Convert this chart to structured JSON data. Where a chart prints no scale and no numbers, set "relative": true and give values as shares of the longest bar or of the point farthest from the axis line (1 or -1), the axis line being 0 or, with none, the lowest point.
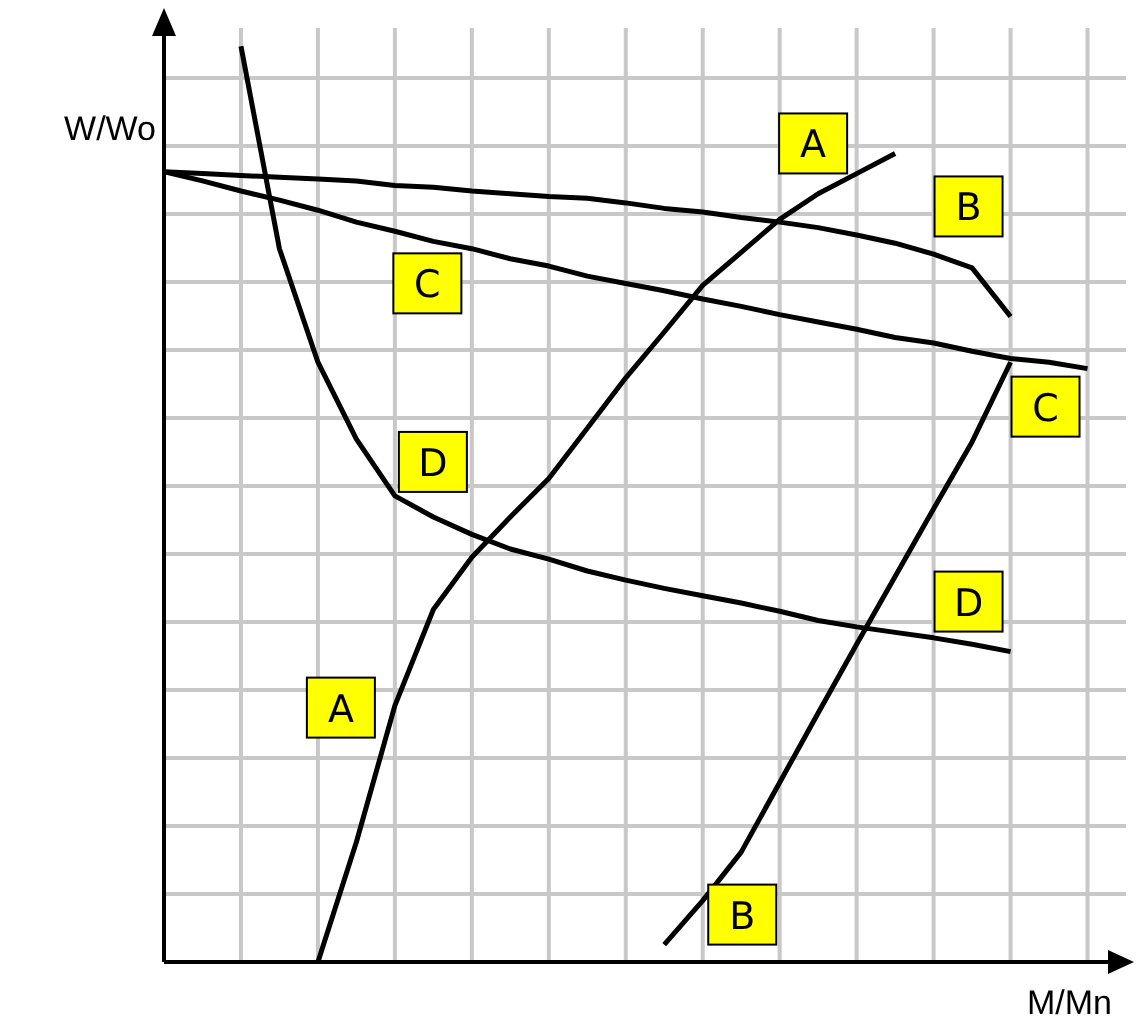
{
  "chart_data": {
    "type": "line",
    "relative": true,
    "xlabel": "M/Mn",
    "ylabel": "W/Wo",
    "grid": true,
    "legend": false,
    "marker": "none",
    "line_style": "solid",
    "categories": [
      null,
      null,
      null,
      null,
      null,
      null,
      null,
      null,
      null,
      null,
      null,
      null,
      null,
      null,
      null,
      null,
      null,
      null,
      null,
      null,
      null,
      null,
      null,
      null,
      null
    ],
    "series": [
      {
        "name": "A",
        "color": "#000000",
        "values": [
          null,
          null,
          null,
          null,
          0,
          0.131,
          0.28,
          0.385,
          0.442,
          0.486,
          0.528,
          0.583,
          0.638,
          0.688,
          0.739,
          0.775,
          0.811,
          0.839,
          0.861,
          0.883,
          null,
          null,
          null,
          null,
          null
        ]
      },
      {
        "name": "B",
        "color": "#000000",
        "values": [
          0.863,
          0.861,
          0.859,
          0.857,
          0.855,
          0.853,
          0.848,
          0.846,
          0.842,
          0.839,
          0.836,
          0.834,
          0.829,
          0.823,
          0.819,
          0.813,
          0.808,
          0.802,
          0.794,
          0.785,
          0.773,
          0.758,
          0.705,
          null,
          null
        ]
      },
      {
        "name": "B",
        "color": "#000000",
        "values": [
          null,
          null,
          null,
          null,
          null,
          null,
          null,
          null,
          null,
          null,
          null,
          null,
          null,
          0.019,
          0.067,
          0.12,
          0.196,
          0.272,
          0.347,
          0.421,
          0.495,
          0.568,
          0.655,
          null,
          null
        ]
      },
      {
        "name": "C",
        "color": "#000000",
        "values": [
          0.863,
          0.853,
          0.842,
          0.832,
          0.821,
          0.808,
          0.798,
          0.787,
          0.779,
          0.768,
          0.76,
          0.749,
          0.741,
          0.733,
          0.724,
          0.716,
          0.707,
          0.699,
          0.691,
          0.682,
          0.676,
          0.667,
          0.659,
          0.655,
          0.648
        ]
      },
      {
        "name": "D",
        "color": "#000000",
        "values": [
          null,
          null,
          1,
          0.779,
          0.655,
          0.571,
          0.509,
          0.486,
          0.467,
          0.451,
          0.44,
          0.427,
          0.417,
          0.408,
          0.4,
          0.392,
          0.383,
          0.373,
          0.366,
          0.36,
          0.354,
          0.347,
          0.339,
          null,
          null
        ]
      }
    ]
  }
}
